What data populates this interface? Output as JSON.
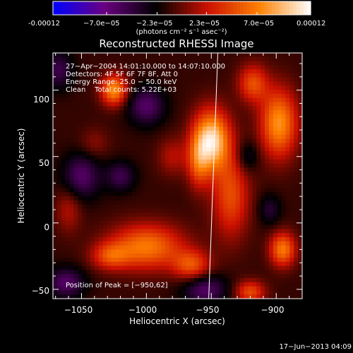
{
  "colorbar": {
    "tick_labels": [
      "-0.00012",
      "−7.0e−05",
      "−2.3e−05",
      "2.3e−05",
      "7.0e−05",
      "0.00012"
    ],
    "tick_values": [
      -0.00012,
      -7e-05,
      -2.3e-05,
      2.3e-05,
      7e-05,
      0.00012
    ],
    "range": [
      -0.00012,
      0.00012
    ],
    "units_label": "(photons cm⁻² s⁻¹ asec⁻²)",
    "colormap_stops": [
      "#0000ff",
      "#6a0080",
      "#000000",
      "#cc1000",
      "#ff8000",
      "#ffffff"
    ]
  },
  "chart_data": {
    "type": "heatmap",
    "title": "Reconstructed RHESSI Image",
    "xlabel": "Heliocentric X (arcsec)",
    "ylabel": "Heliocentric Y (arcsec)",
    "xlim": [
      -1072,
      -880
    ],
    "ylim": [
      -57,
      128
    ],
    "x_ticks": [
      -1050,
      -1000,
      -950,
      -900
    ],
    "y_ticks": [
      -50,
      0,
      50,
      100
    ],
    "x_tick_labels": [
      "−1050",
      "−1000",
      "−950",
      "−900"
    ],
    "y_tick_labels": [
      "−50",
      "0",
      "50",
      "100"
    ],
    "info_lines": [
      "27−Apr−2004 14:01:10.000 to 14:07:10.000",
      "Detectors: 4F 5F 6F 7F 8F, Att 0",
      "Energy Range: 25.0 − 50.0 keV",
      "Clean    Total counts: 5.22E+03"
    ],
    "peak_text": "Position of Peak = [−950,62]",
    "peak": [
      -950,
      62
    ],
    "limb_line": [
      [
        -952,
        -57
      ],
      [
        -945,
        128
      ]
    ],
    "blobs": [
      {
        "x": -950,
        "y": 62,
        "sx": 10,
        "sy": 16,
        "amp": 0.00012
      },
      {
        "x": -960,
        "y": 45,
        "sx": 6,
        "sy": 14,
        "amp": 5e-05
      },
      {
        "x": -898,
        "y": 75,
        "sx": 10,
        "sy": 18,
        "amp": 9e-05
      },
      {
        "x": -918,
        "y": 105,
        "sx": 8,
        "sy": 10,
        "amp": 6e-05
      },
      {
        "x": -935,
        "y": 20,
        "sx": 10,
        "sy": 22,
        "amp": 6e-05
      },
      {
        "x": -1025,
        "y": 100,
        "sx": 7,
        "sy": 8,
        "amp": 9e-05
      },
      {
        "x": -1000,
        "y": -18,
        "sx": 20,
        "sy": 12,
        "amp": 8e-05
      },
      {
        "x": -895,
        "y": -20,
        "sx": 7,
        "sy": 9,
        "amp": 8e-05
      },
      {
        "x": -965,
        "y": -32,
        "sx": 10,
        "sy": 8,
        "amp": 6e-05
      },
      {
        "x": -1028,
        "y": -25,
        "sx": 10,
        "sy": 7,
        "amp": 5e-05
      },
      {
        "x": -920,
        "y": -52,
        "sx": 8,
        "sy": 6,
        "amp": 6e-05
      },
      {
        "x": -980,
        "y": 50,
        "sx": 8,
        "sy": 10,
        "amp": 3e-05
      },
      {
        "x": -1060,
        "y": 10,
        "sx": 7,
        "sy": 12,
        "amp": 3e-05
      },
      {
        "x": -1040,
        "y": 60,
        "sx": 8,
        "sy": 8,
        "amp": 2e-05
      },
      {
        "x": -1000,
        "y": 88,
        "sx": 10,
        "sy": 10,
        "amp": -5e-05
      },
      {
        "x": -1050,
        "y": 35,
        "sx": 10,
        "sy": 12,
        "amp": -5e-05
      },
      {
        "x": -1062,
        "y": -45,
        "sx": 10,
        "sy": 8,
        "amp": -5e-05
      },
      {
        "x": -1020,
        "y": 35,
        "sx": 8,
        "sy": 8,
        "amp": -4e-05
      },
      {
        "x": -955,
        "y": -50,
        "sx": 12,
        "sy": 8,
        "amp": -5e-05
      },
      {
        "x": -922,
        "y": 50,
        "sx": 6,
        "sy": 8,
        "amp": -3e-05
      },
      {
        "x": -1068,
        "y": 115,
        "sx": 8,
        "sy": 10,
        "amp": -4e-05
      },
      {
        "x": -905,
        "y": 10,
        "sx": 6,
        "sy": 8,
        "amp": -3e-05
      }
    ]
  },
  "footer": {
    "date": "17−Jun−2013 04:09"
  }
}
